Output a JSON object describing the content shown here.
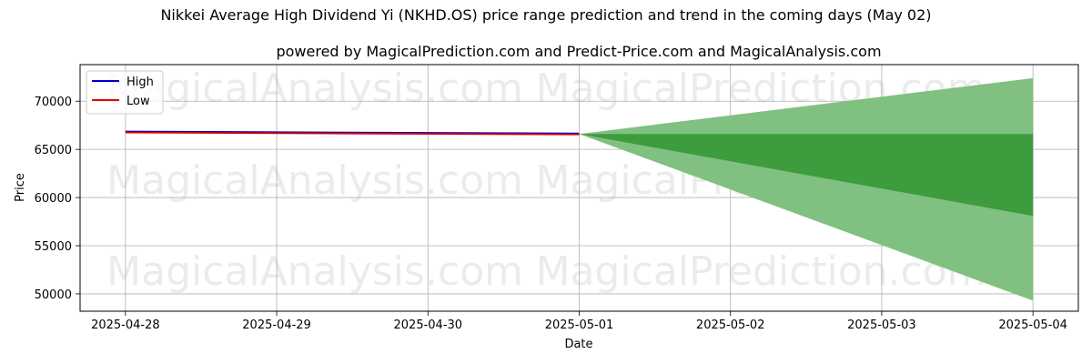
{
  "chart_data": {
    "type": "line",
    "title": "Nikkei Average High Dividend Yi (NKHD.OS) price range prediction and trend in the coming days (May 02)",
    "subtitle": "powered by MagicalPrediction.com and Predict-Price.com and MagicalAnalysis.com",
    "xlabel": "Date",
    "ylabel": "Price",
    "x_ticks": [
      "2025-04-28",
      "2025-04-29",
      "2025-04-30",
      "2025-05-01",
      "2025-05-02",
      "2025-05-03",
      "2025-05-04"
    ],
    "y_ticks": [
      50000,
      55000,
      60000,
      65000,
      70000
    ],
    "xlim": [
      -0.3,
      6.3
    ],
    "ylim": [
      48200,
      73800
    ],
    "grid": true,
    "legend": "top-left",
    "series": [
      {
        "name": "High",
        "color": "#0000cc",
        "x": [
          0,
          3
        ],
        "values": [
          66850,
          66650
        ]
      },
      {
        "name": "Low",
        "color": "#dd0000",
        "x": [
          0,
          3
        ],
        "values": [
          66750,
          66550
        ]
      }
    ],
    "bands": [
      {
        "color": "#80c080",
        "x": [
          3,
          6
        ],
        "upper": [
          66600,
          72400
        ],
        "lower": [
          66600,
          49300
        ]
      },
      {
        "color": "#3d9c3d",
        "x": [
          3,
          6
        ],
        "upper": [
          66600,
          66600
        ],
        "lower": [
          66600,
          58100
        ]
      }
    ],
    "watermarks": [
      "MagicalAnalysis.com",
      "MagicalPrediction.com"
    ]
  }
}
